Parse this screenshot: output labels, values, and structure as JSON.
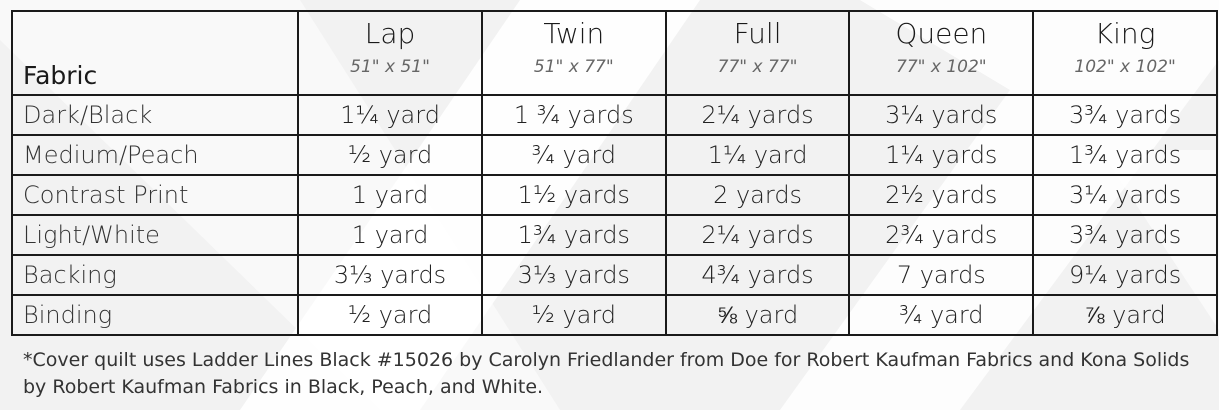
{
  "table": {
    "fabric_header": "Fabric",
    "sizes": [
      {
        "name": "Lap",
        "dims": "51\" x 51\""
      },
      {
        "name": "Twin",
        "dims": "51\" x 77\""
      },
      {
        "name": "Full",
        "dims": "77\" x 77\""
      },
      {
        "name": "Queen",
        "dims": "77\" x 102\""
      },
      {
        "name": "King",
        "dims": "102\" x 102\""
      }
    ],
    "rows": [
      {
        "fabric": "Dark/Black",
        "amounts": [
          "1¼ yard",
          "1 ¾ yards",
          "2¼ yards",
          "3¼ yards",
          "3¾ yards"
        ]
      },
      {
        "fabric": "Medium/Peach",
        "amounts": [
          "½ yard",
          "¾ yard",
          "1¼ yard",
          "1¼ yards",
          "1¾ yards"
        ]
      },
      {
        "fabric": "Contrast Print",
        "amounts": [
          "1 yard",
          "1½ yards",
          "2 yards",
          "2½ yards",
          "3¼ yards"
        ]
      },
      {
        "fabric": "Light/White",
        "amounts": [
          "1 yard",
          "1¾ yards",
          "2¼ yards",
          "2¾ yards",
          "3¾ yards"
        ]
      },
      {
        "fabric": "Backing",
        "amounts": [
          "3⅓ yards",
          "3⅓ yards",
          "4¾ yards",
          "7 yards",
          "9¼ yards"
        ]
      },
      {
        "fabric": "Binding",
        "amounts": [
          "½ yard",
          "½ yard",
          "⅝ yard",
          "¾ yard",
          "⅞ yard"
        ]
      }
    ]
  },
  "footnote": "*Cover quilt uses Ladder Lines Black #15026 by Carolyn Friedlander from Doe for Robert Kaufman Fabrics and Kona Solids by Robert Kaufman Fabrics in Black, Peach, and White.",
  "colors": {
    "background": "#f2f2f2",
    "stripe": "#ffffff",
    "border": "#1a1a1a"
  }
}
